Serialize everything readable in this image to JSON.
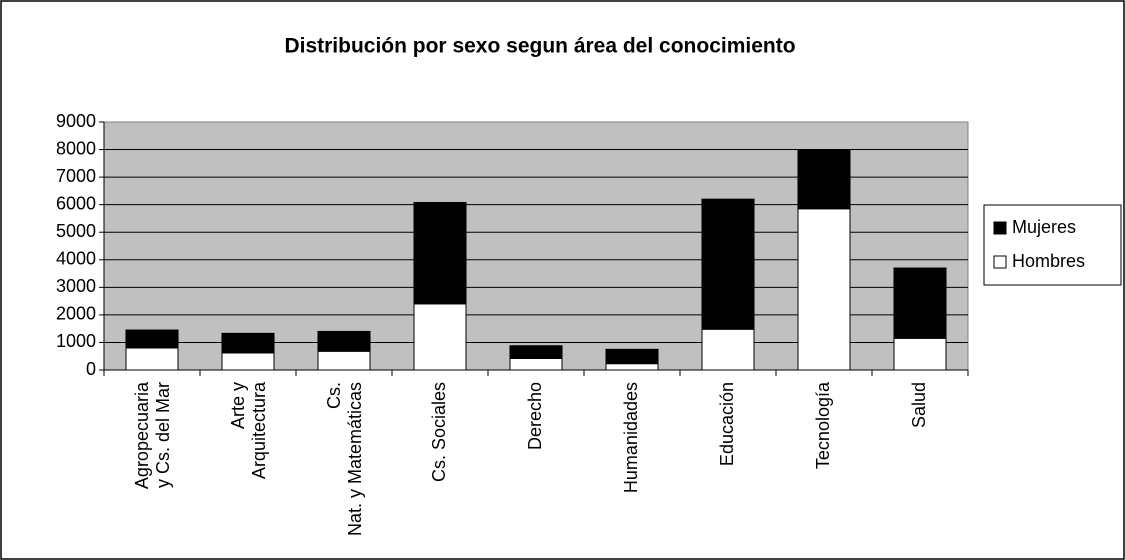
{
  "chart_data": {
    "type": "stacked_bar",
    "title": "Distribución por sexo segun área del conocimiento",
    "categories": [
      "Agropecuaria y Cs. del Mar",
      "Arte y Arquitectura",
      "Cs. Nat. y Matemáticas",
      "Cs. Sociales",
      "Derecho",
      "Humanidades",
      "Educación",
      "Tecnología",
      "Salud"
    ],
    "series": [
      {
        "name": "Hombres",
        "color": "#ffffff",
        "values": [
          800,
          620,
          680,
          2400,
          420,
          230,
          1480,
          5850,
          1150
        ]
      },
      {
        "name": "Mujeres",
        "color": "#000000",
        "values": [
          650,
          710,
          720,
          3680,
          460,
          520,
          4720,
          2150,
          2550
        ]
      }
    ],
    "ylim": [
      0,
      9000
    ],
    "yticks": [
      0,
      1000,
      2000,
      3000,
      4000,
      5000,
      6000,
      7000,
      8000,
      9000
    ],
    "grid": true,
    "legend": "right"
  }
}
